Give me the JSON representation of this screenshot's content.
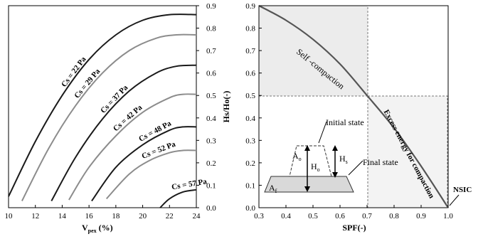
{
  "chart_data": [
    {
      "type": "line",
      "xlabel_main": "V",
      "xlabel_sub": "pex",
      "xlabel_rest": " (%)",
      "ylabel": "",
      "xlim": [
        10,
        24
      ],
      "ylim": [
        0,
        0.9
      ],
      "x_ticks": [
        "10",
        "12",
        "14",
        "16",
        "18",
        "20",
        "22",
        "24"
      ],
      "y_ticks": [
        "0.0",
        "0.1",
        "0.2",
        "0.3",
        "0.4",
        "0.5",
        "0.6",
        "0.7",
        "0.8",
        "0.9"
      ],
      "y_axis_side": "right",
      "grid": false,
      "series": [
        {
          "name": "Cs = 22 Pa",
          "color": "#1a1a1a",
          "x": [
            10,
            12,
            14,
            16,
            18,
            20,
            22,
            24
          ],
          "y": [
            0.05,
            0.295,
            0.5,
            0.66,
            0.77,
            0.835,
            0.86,
            0.86
          ]
        },
        {
          "name": "Cs = 29 Pa",
          "color": "#8c8c8c",
          "x": [
            11,
            13,
            15,
            17,
            19,
            21,
            22.5,
            24
          ],
          "y": [
            0.03,
            0.265,
            0.455,
            0.6,
            0.7,
            0.755,
            0.77,
            0.77
          ]
        },
        {
          "name": "Cs = 37 Pa",
          "color": "#1a1a1a",
          "x": [
            13.2,
            15,
            17,
            19,
            21,
            22.5,
            24
          ],
          "y": [
            0.03,
            0.225,
            0.395,
            0.52,
            0.6,
            0.63,
            0.635
          ]
        },
        {
          "name": "Cs = 42 Pa",
          "color": "#8c8c8c",
          "x": [
            14.5,
            16,
            18,
            20,
            22,
            23,
            24
          ],
          "y": [
            0.035,
            0.18,
            0.32,
            0.425,
            0.49,
            0.505,
            0.505
          ]
        },
        {
          "name": "Cs = 48 Pa",
          "color": "#1a1a1a",
          "x": [
            16.2,
            18,
            20,
            22,
            23,
            24
          ],
          "y": [
            0.03,
            0.18,
            0.28,
            0.345,
            0.36,
            0.36
          ]
        },
        {
          "name": "Cs = 52 Pa",
          "color": "#8c8c8c",
          "x": [
            17.3,
            19,
            20.5,
            22,
            23,
            24
          ],
          "y": [
            0.04,
            0.15,
            0.21,
            0.245,
            0.255,
            0.255
          ]
        },
        {
          "name": "Cs = 57 Pa",
          "color": "#1a1a1a",
          "x": [
            21.3,
            22,
            23,
            24
          ],
          "y": [
            0.0,
            0.04,
            0.07,
            0.08
          ]
        }
      ]
    },
    {
      "type": "line",
      "xlabel": "SPF(-)",
      "ylabel": "Hs/Ho(-)",
      "xlim": [
        0.3,
        1.0
      ],
      "ylim": [
        0,
        0.9
      ],
      "x_ticks": [
        "0.3",
        "0.4",
        "0.5",
        "0.6",
        "0.7",
        "0.8",
        "0.9",
        "1.0"
      ],
      "y_ticks": [
        "0.0",
        "0.1",
        "0.2",
        "0.3",
        "0.4",
        "0.5",
        "0.6",
        "0.7",
        "0.8",
        "0.9"
      ],
      "grid": false,
      "series": [
        {
          "color": "#555555",
          "x": [
            0.3,
            0.4,
            0.5,
            0.6,
            0.7,
            0.8,
            0.9,
            1.0
          ],
          "y": [
            0.9,
            0.835,
            0.75,
            0.64,
            0.5,
            0.355,
            0.185,
            0.0
          ]
        }
      ],
      "annotations": {
        "self_compaction": "Self -compaction",
        "excess_energy": "Excess energy  for compaction",
        "nsic": "NSIC",
        "initial_state": "Initial state",
        "final_state": "Final state",
        "a_o_main": "A",
        "a_o_sub": "o",
        "h_o_main": "H",
        "h_o_sub": "o",
        "h_s_main": "H",
        "h_s_sub": "s",
        "a_f_main": "A",
        "a_f_sub": "f"
      }
    }
  ]
}
